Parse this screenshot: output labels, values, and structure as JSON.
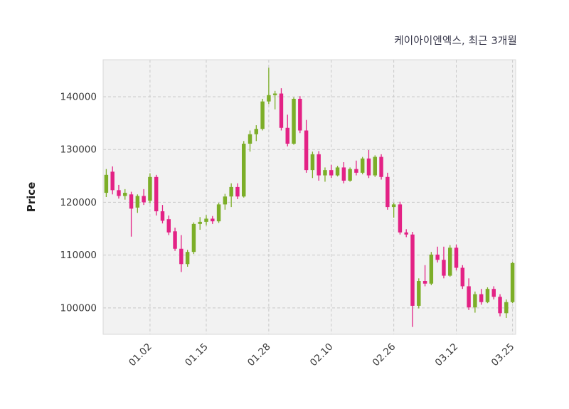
{
  "chart_data": {
    "type": "candlestick",
    "title": "케이아이엔엑스, 최근 3개월",
    "ylabel": "Price",
    "ylim": [
      95000,
      147000
    ],
    "y_ticks": [
      100000,
      110000,
      120000,
      130000,
      140000
    ],
    "x_ticks": [
      {
        "index": 7,
        "label": "01.02"
      },
      {
        "index": 16,
        "label": "01.15"
      },
      {
        "index": 26,
        "label": "01.28"
      },
      {
        "index": 36,
        "label": "02.10"
      },
      {
        "index": 46,
        "label": "02.26"
      },
      {
        "index": 56,
        "label": "03.12"
      },
      {
        "index": 65,
        "label": "03.25"
      }
    ],
    "grid": "dashed",
    "legend": "none",
    "up_color": "#7cae28",
    "down_color": "#e32285",
    "plot_bg": "#f2f2f2",
    "grid_color": "#c9c9c9",
    "border_color": "#d8d8d8",
    "tick_color": "#3a3a3a",
    "columns": [
      "date",
      "open",
      "high",
      "low",
      "close"
    ],
    "dates": [
      "12.20",
      "12.21",
      "12.22",
      "12.26",
      "12.27",
      "12.28",
      "12.29",
      "01.02",
      "01.03",
      "01.04",
      "01.05",
      "01.08",
      "01.09",
      "01.10",
      "01.11",
      "01.12",
      "01.15",
      "01.16",
      "01.17",
      "01.18",
      "01.19",
      "01.22",
      "01.23",
      "01.24",
      "01.25",
      "01.26",
      "01.28",
      "01.30",
      "01.31",
      "02.01",
      "02.02",
      "02.05",
      "02.06",
      "02.07",
      "02.08",
      "02.09",
      "02.10",
      "02.13",
      "02.14",
      "02.15",
      "02.16",
      "02.19",
      "02.20",
      "02.21",
      "02.22",
      "02.23",
      "02.26",
      "02.27",
      "02.28",
      "02.29",
      "03.04",
      "03.05",
      "03.06",
      "03.07",
      "03.08",
      "03.11",
      "03.12",
      "03.13",
      "03.14",
      "03.15",
      "03.18",
      "03.19",
      "03.20",
      "03.21",
      "03.22",
      "03.25"
    ],
    "ohlc": [
      [
        121800,
        126300,
        121000,
        125200
      ],
      [
        125800,
        126800,
        121500,
        122300
      ],
      [
        122300,
        123300,
        120700,
        121200
      ],
      [
        121200,
        122500,
        120500,
        121800
      ],
      [
        121500,
        122000,
        113500,
        118800
      ],
      [
        119000,
        121500,
        118000,
        121200
      ],
      [
        121200,
        122500,
        119500,
        120000
      ],
      [
        120300,
        125500,
        119800,
        124800
      ],
      [
        124800,
        125200,
        117500,
        118300
      ],
      [
        118300,
        119500,
        116000,
        116500
      ],
      [
        116800,
        117500,
        113800,
        114300
      ],
      [
        114500,
        115200,
        110800,
        111200
      ],
      [
        111200,
        113800,
        106800,
        108300
      ],
      [
        108300,
        111000,
        107800,
        110600
      ],
      [
        110600,
        116200,
        110200,
        115900
      ],
      [
        115900,
        117200,
        114800,
        116300
      ],
      [
        116300,
        117600,
        115600,
        116900
      ],
      [
        116900,
        117400,
        115900,
        116400
      ],
      [
        116400,
        119900,
        116100,
        119600
      ],
      [
        119600,
        121600,
        118600,
        121100
      ],
      [
        121100,
        123600,
        119100,
        122900
      ],
      [
        122900,
        123600,
        120600,
        121100
      ],
      [
        121100,
        131600,
        120900,
        131100
      ],
      [
        131100,
        133600,
        129600,
        132900
      ],
      [
        132900,
        134600,
        131600,
        133900
      ],
      [
        133900,
        139600,
        133600,
        139100
      ],
      [
        139100,
        145500,
        138600,
        140300
      ],
      [
        140300,
        141100,
        137600,
        140600
      ],
      [
        140600,
        141600,
        133600,
        134100
      ],
      [
        134100,
        136600,
        130600,
        131100
      ],
      [
        131100,
        139900,
        130900,
        139600
      ],
      [
        139600,
        140100,
        133100,
        133600
      ],
      [
        133600,
        135600,
        125600,
        126100
      ],
      [
        126100,
        129600,
        124600,
        129100
      ],
      [
        129100,
        129700,
        124100,
        125100
      ],
      [
        125100,
        126600,
        123900,
        126100
      ],
      [
        126100,
        127100,
        124600,
        125100
      ],
      [
        125100,
        126900,
        124900,
        126600
      ],
      [
        126600,
        127600,
        123600,
        124100
      ],
      [
        124100,
        126600,
        123900,
        126300
      ],
      [
        126300,
        127900,
        125100,
        125600
      ],
      [
        125600,
        128600,
        125300,
        128300
      ],
      [
        128300,
        129900,
        124600,
        125100
      ],
      [
        125100,
        128900,
        124800,
        128600
      ],
      [
        128600,
        129100,
        124300,
        124800
      ],
      [
        124800,
        125600,
        118600,
        119100
      ],
      [
        119100,
        119900,
        117100,
        119600
      ],
      [
        119600,
        120100,
        113900,
        114300
      ],
      [
        114300,
        114900,
        113400,
        113900
      ],
      [
        113900,
        114400,
        96400,
        100400
      ],
      [
        100400,
        105600,
        99900,
        105100
      ],
      [
        105100,
        108100,
        104100,
        104600
      ],
      [
        104600,
        110600,
        104300,
        110100
      ],
      [
        110100,
        111600,
        108600,
        109100
      ],
      [
        109100,
        111600,
        105600,
        106100
      ],
      [
        106100,
        111900,
        105900,
        111400
      ],
      [
        111400,
        112000,
        107100,
        107600
      ],
      [
        107600,
        108100,
        103600,
        104100
      ],
      [
        104100,
        105600,
        99600,
        100100
      ],
      [
        100100,
        103100,
        99100,
        102600
      ],
      [
        102600,
        103600,
        100600,
        101100
      ],
      [
        101100,
        103900,
        100900,
        103600
      ],
      [
        103600,
        104100,
        101600,
        102100
      ],
      [
        102100,
        102600,
        98400,
        99000
      ],
      [
        99000,
        101600,
        98100,
        101100
      ],
      [
        101100,
        108700,
        100900,
        108500
      ]
    ]
  }
}
